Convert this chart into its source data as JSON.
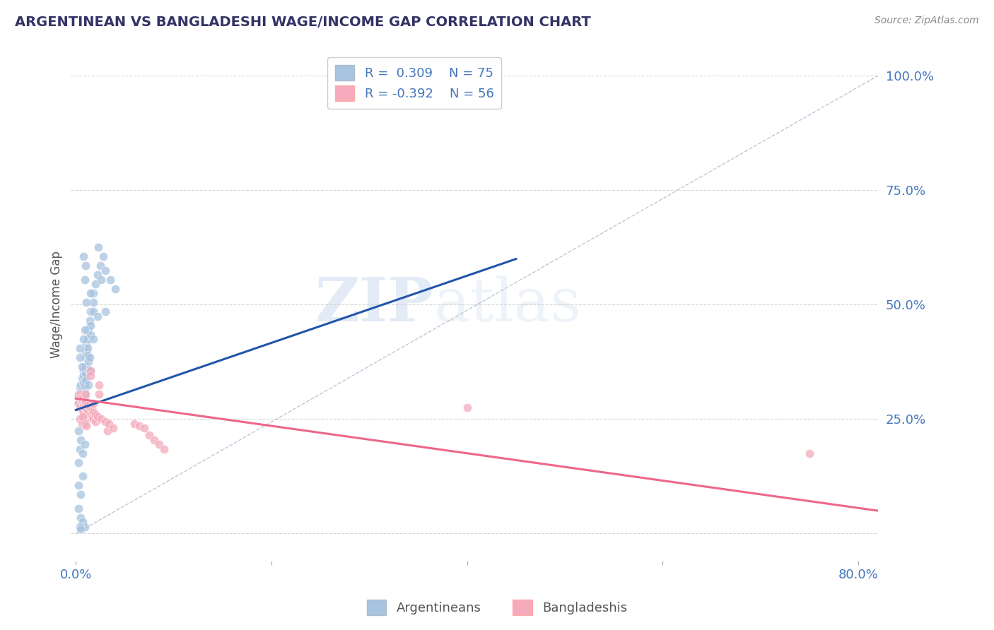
{
  "title": "ARGENTINEAN VS BANGLADESHI WAGE/INCOME GAP CORRELATION CHART",
  "source": "Source: ZipAtlas.com",
  "ylabel": "Wage/Income Gap",
  "yticks": [
    0.0,
    0.25,
    0.5,
    0.75,
    1.0
  ],
  "ytick_labels": [
    "",
    "25.0%",
    "50.0%",
    "75.0%",
    "100.0%"
  ],
  "xticks": [
    0.0,
    0.2,
    0.4,
    0.6,
    0.8
  ],
  "xlim": [
    -0.005,
    0.82
  ],
  "ylim": [
    -0.06,
    1.06
  ],
  "legend_blue_r": "0.309",
  "legend_blue_n": "75",
  "legend_pink_r": "-0.392",
  "legend_pink_n": "56",
  "blue_color": "#A8C4E0",
  "pink_color": "#F4AABB",
  "blue_line_color": "#2255AA",
  "pink_line_color": "#EE6688",
  "diag_line_color": "#AABBCC",
  "watermark_zip": "ZIP",
  "watermark_atlas": "atlas",
  "background_color": "#FFFFFF",
  "grid_color": "#CCCCCC",
  "title_color": "#333366",
  "axis_label_color": "#4477BB",
  "blue_scatter": [
    [
      0.003,
      0.305
    ],
    [
      0.003,
      0.285
    ],
    [
      0.004,
      0.32
    ],
    [
      0.004,
      0.298
    ],
    [
      0.005,
      0.325
    ],
    [
      0.005,
      0.275
    ],
    [
      0.006,
      0.34
    ],
    [
      0.006,
      0.29
    ],
    [
      0.007,
      0.315
    ],
    [
      0.007,
      0.305
    ],
    [
      0.007,
      0.295
    ],
    [
      0.008,
      0.355
    ],
    [
      0.008,
      0.345
    ],
    [
      0.008,
      0.33
    ],
    [
      0.009,
      0.318
    ],
    [
      0.009,
      0.308
    ],
    [
      0.009,
      0.298
    ],
    [
      0.009,
      0.325
    ],
    [
      0.01,
      0.365
    ],
    [
      0.01,
      0.35
    ],
    [
      0.01,
      0.335
    ],
    [
      0.01,
      0.385
    ],
    [
      0.01,
      0.398
    ],
    [
      0.011,
      0.415
    ],
    [
      0.012,
      0.445
    ],
    [
      0.012,
      0.425
    ],
    [
      0.012,
      0.405
    ],
    [
      0.012,
      0.39
    ],
    [
      0.013,
      0.375
    ],
    [
      0.013,
      0.358
    ],
    [
      0.014,
      0.465
    ],
    [
      0.014,
      0.385
    ],
    [
      0.015,
      0.485
    ],
    [
      0.015,
      0.455
    ],
    [
      0.015,
      0.435
    ],
    [
      0.018,
      0.525
    ],
    [
      0.018,
      0.505
    ],
    [
      0.018,
      0.425
    ],
    [
      0.02,
      0.545
    ],
    [
      0.022,
      0.565
    ],
    [
      0.025,
      0.585
    ],
    [
      0.028,
      0.605
    ],
    [
      0.03,
      0.575
    ],
    [
      0.035,
      0.555
    ],
    [
      0.04,
      0.535
    ],
    [
      0.008,
      0.605
    ],
    [
      0.01,
      0.585
    ],
    [
      0.009,
      0.555
    ],
    [
      0.015,
      0.525
    ],
    [
      0.018,
      0.485
    ],
    [
      0.004,
      0.405
    ],
    [
      0.004,
      0.385
    ],
    [
      0.006,
      0.365
    ],
    [
      0.008,
      0.425
    ],
    [
      0.009,
      0.445
    ],
    [
      0.003,
      0.225
    ],
    [
      0.005,
      0.205
    ],
    [
      0.004,
      0.185
    ],
    [
      0.003,
      0.155
    ],
    [
      0.007,
      0.175
    ],
    [
      0.009,
      0.195
    ],
    [
      0.003,
      0.105
    ],
    [
      0.005,
      0.085
    ],
    [
      0.007,
      0.125
    ],
    [
      0.003,
      0.055
    ],
    [
      0.005,
      0.035
    ],
    [
      0.007,
      0.025
    ],
    [
      0.009,
      0.015
    ],
    [
      0.011,
      0.505
    ],
    [
      0.015,
      0.355
    ],
    [
      0.013,
      0.325
    ],
    [
      0.022,
      0.475
    ],
    [
      0.026,
      0.555
    ],
    [
      0.03,
      0.485
    ],
    [
      0.023,
      0.625
    ],
    [
      0.004,
      0.015
    ],
    [
      0.005,
      0.01
    ]
  ],
  "pink_scatter": [
    [
      0.003,
      0.3
    ],
    [
      0.003,
      0.285
    ],
    [
      0.004,
      0.275
    ],
    [
      0.004,
      0.305
    ],
    [
      0.005,
      0.295
    ],
    [
      0.005,
      0.28
    ],
    [
      0.006,
      0.29
    ],
    [
      0.006,
      0.298
    ],
    [
      0.007,
      0.275
    ],
    [
      0.007,
      0.29
    ],
    [
      0.007,
      0.27
    ],
    [
      0.008,
      0.295
    ],
    [
      0.008,
      0.28
    ],
    [
      0.008,
      0.265
    ],
    [
      0.009,
      0.29
    ],
    [
      0.009,
      0.285
    ],
    [
      0.01,
      0.285
    ],
    [
      0.01,
      0.272
    ],
    [
      0.01,
      0.275
    ],
    [
      0.01,
      0.305
    ],
    [
      0.012,
      0.28
    ],
    [
      0.012,
      0.265
    ],
    [
      0.012,
      0.25
    ],
    [
      0.015,
      0.275
    ],
    [
      0.015,
      0.26
    ],
    [
      0.015,
      0.355
    ],
    [
      0.015,
      0.345
    ],
    [
      0.017,
      0.27
    ],
    [
      0.017,
      0.255
    ],
    [
      0.018,
      0.265
    ],
    [
      0.018,
      0.25
    ],
    [
      0.018,
      0.285
    ],
    [
      0.02,
      0.26
    ],
    [
      0.02,
      0.245
    ],
    [
      0.022,
      0.255
    ],
    [
      0.024,
      0.305
    ],
    [
      0.024,
      0.325
    ],
    [
      0.026,
      0.25
    ],
    [
      0.03,
      0.245
    ],
    [
      0.032,
      0.225
    ],
    [
      0.034,
      0.24
    ],
    [
      0.038,
      0.23
    ],
    [
      0.06,
      0.24
    ],
    [
      0.065,
      0.235
    ],
    [
      0.07,
      0.23
    ],
    [
      0.075,
      0.215
    ],
    [
      0.08,
      0.205
    ],
    [
      0.085,
      0.195
    ],
    [
      0.09,
      0.185
    ],
    [
      0.4,
      0.275
    ],
    [
      0.75,
      0.175
    ],
    [
      0.004,
      0.25
    ],
    [
      0.006,
      0.24
    ],
    [
      0.007,
      0.255
    ],
    [
      0.009,
      0.24
    ],
    [
      0.011,
      0.235
    ]
  ],
  "blue_line": [
    [
      0.0,
      0.27
    ],
    [
      0.45,
      0.6
    ]
  ],
  "pink_line": [
    [
      0.0,
      0.295
    ],
    [
      0.82,
      0.05
    ]
  ]
}
